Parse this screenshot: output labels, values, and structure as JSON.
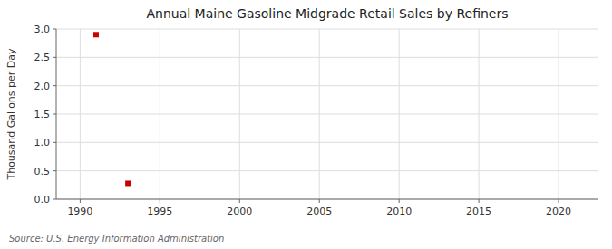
{
  "chart_data": {
    "type": "scatter",
    "title": "Annual Maine Gasoline Midgrade Retail Sales by Refiners",
    "ylabel": "Thousand Gallons per Day",
    "annotation": "Source: U.S. Energy Information Administration",
    "x": [
      1991,
      1993
    ],
    "values": [
      2.9,
      0.28
    ],
    "color": "#cc0000",
    "marker": "square",
    "xlim": [
      1988.5,
      2022.5
    ],
    "ylim": [
      0.0,
      3.0
    ],
    "xticks": [
      1990,
      1995,
      2000,
      2005,
      2010,
      2015,
      2020
    ],
    "yticks": [
      {
        "value": 0,
        "label": "0.0"
      },
      0.5,
      {
        "value": 1,
        "label": "1.0"
      },
      1.5,
      {
        "value": 2,
        "label": "2.0"
      },
      2.5,
      {
        "value": 3,
        "label": "3.0"
      }
    ],
    "grid": true
  }
}
